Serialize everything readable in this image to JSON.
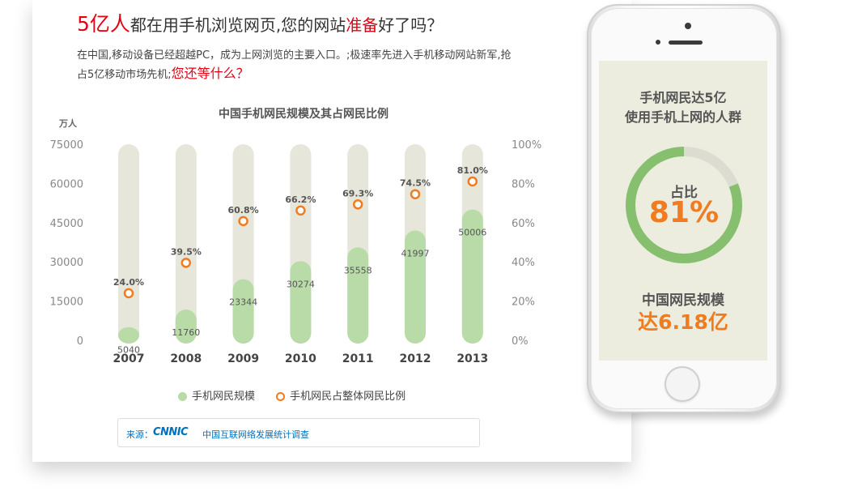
{
  "headline": {
    "accent_1": "5亿人",
    "part_1": "都在用手机浏览网页,您的网站",
    "accent_2": "准备",
    "part_2": "好了吗？"
  },
  "intro": {
    "text": "在中国,移动设备已经超越PC，成为上网浏览的主要入口。;极速率先进入手机移动网站新军,抢占5亿移动市场先机;",
    "question": "您还等什么？"
  },
  "chart_data": {
    "type": "bar",
    "title": "中国手机网民规模及其占网民比例",
    "y_unit": "万人",
    "categories": [
      "2007",
      "2008",
      "2009",
      "2010",
      "2011",
      "2012",
      "2013"
    ],
    "ylim": [
      0,
      75000
    ],
    "y2lim": [
      0,
      100
    ],
    "y_ticks": [
      "0",
      "15000",
      "30000",
      "45000",
      "60000",
      "75000"
    ],
    "y2_ticks": [
      "0%",
      "20%",
      "40%",
      "60%",
      "80%",
      "100%"
    ],
    "series": [
      {
        "name": "手机网民规模",
        "kind": "bar",
        "values": [
          5040,
          11760,
          23344,
          30274,
          35558,
          41997,
          50006
        ]
      },
      {
        "name": "手机网民占整体网民比例",
        "kind": "point",
        "axis": "right",
        "values": [
          24.0,
          39.5,
          60.8,
          66.2,
          69.3,
          74.5,
          81.0
        ],
        "labels": [
          "24.0%",
          "39.5%",
          "60.8%",
          "66.2%",
          "69.3%",
          "74.5%",
          "81.0%"
        ]
      }
    ],
    "legend_position": "bottom",
    "grid": false,
    "colors": {
      "bar": "#b8dba8",
      "track": "#e6e6da",
      "point": "#f07c1f"
    }
  },
  "source": {
    "label": "来源：",
    "logo": "CNNIC",
    "org": "中国互联网络发展统计调查"
  },
  "phone": {
    "title_line1": "手机网民达5亿",
    "title_line2": "使用手机上网的人群",
    "ratio_label": "占比",
    "ratio_value": "81%",
    "ratio_fraction": 0.81,
    "scale_label": "中国网民规模",
    "scale_value": "达6.18亿",
    "colors": {
      "ring": "#86c06f",
      "ring_track": "#dcdcd0",
      "value": "#f07c1f"
    }
  }
}
